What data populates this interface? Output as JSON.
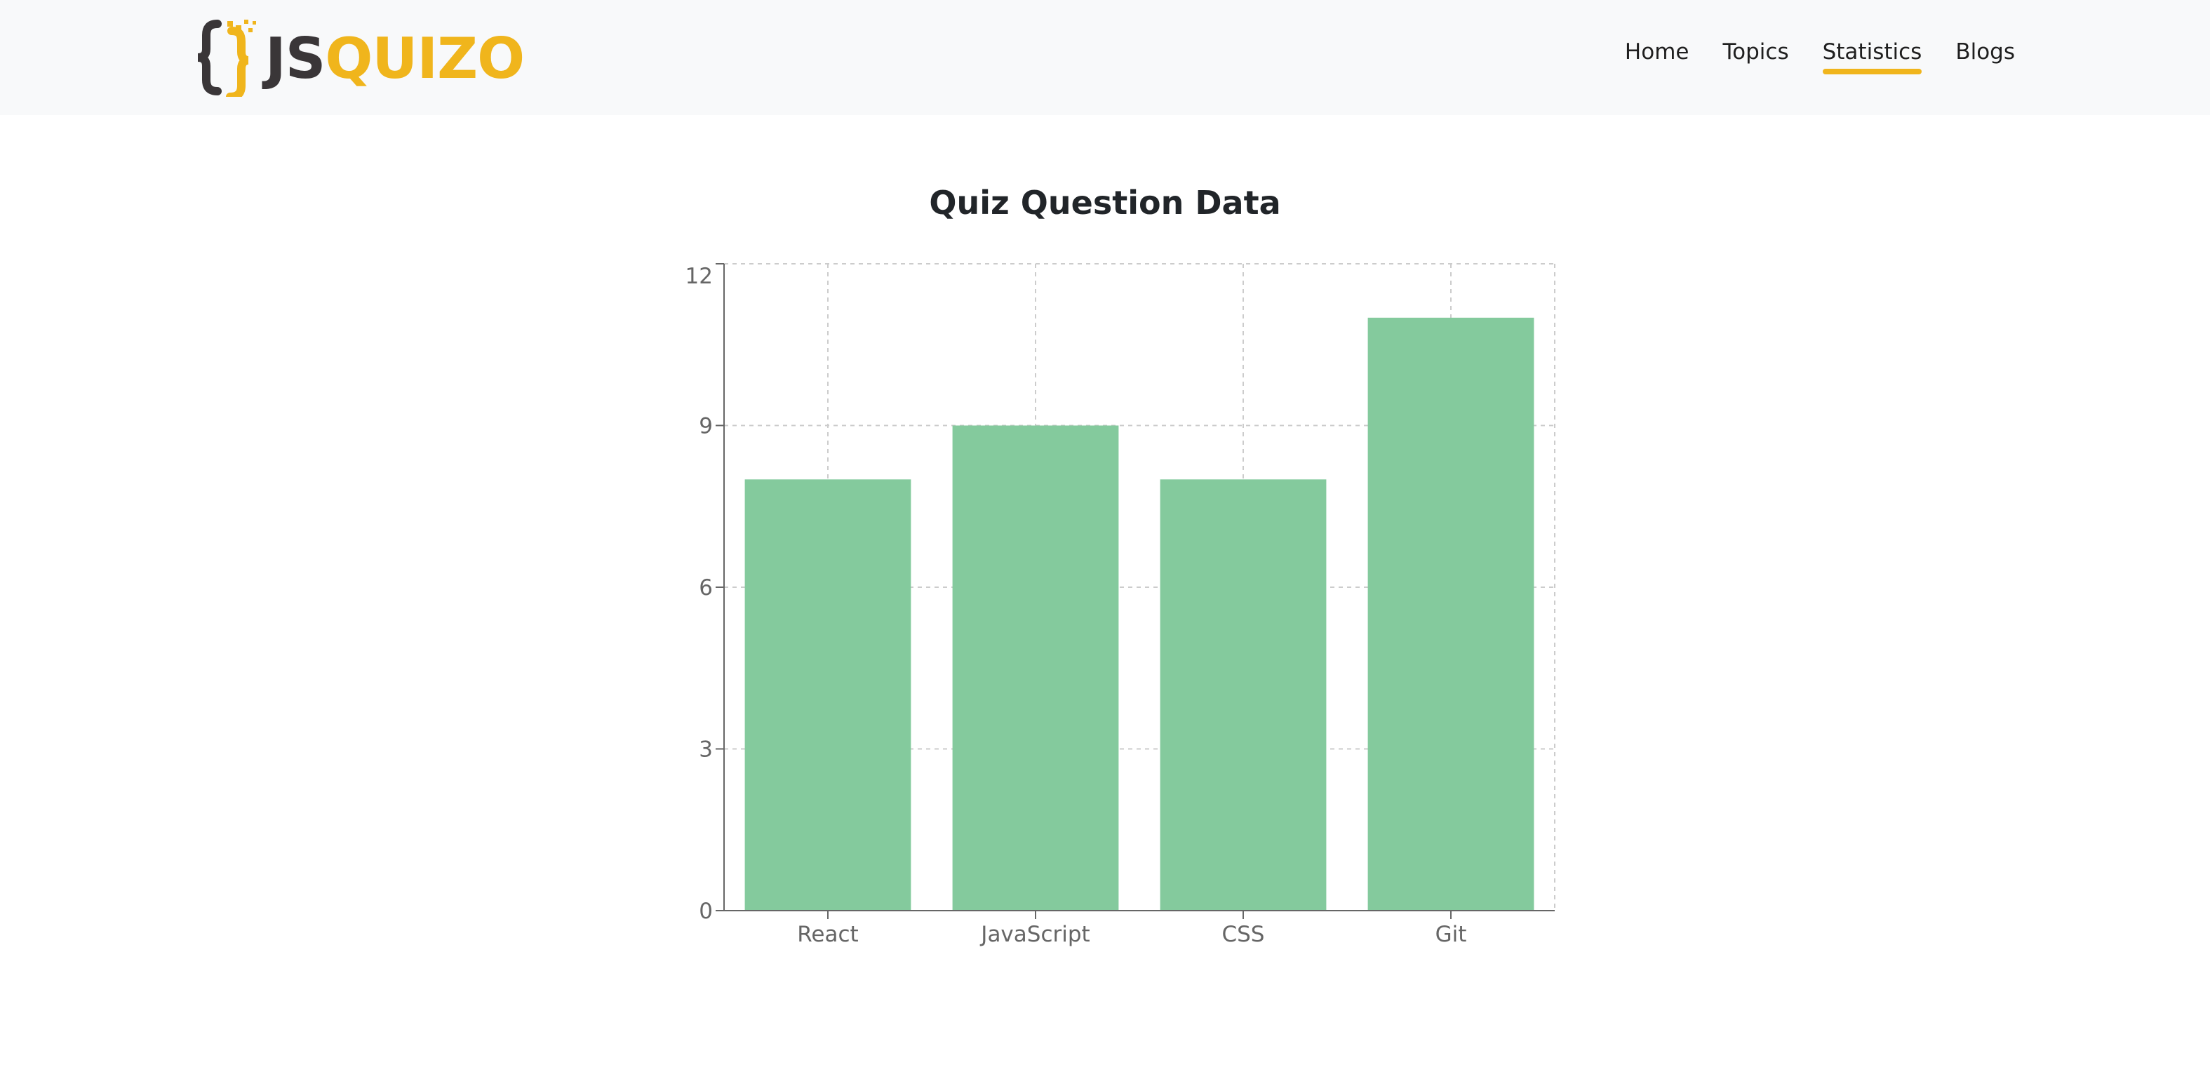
{
  "brand": {
    "part1": "JS",
    "part2": "QUIZO",
    "color_dark": "#3a3638",
    "color_accent": "#f0b51c"
  },
  "nav": {
    "items": [
      {
        "label": "Home",
        "active": false
      },
      {
        "label": "Topics",
        "active": false
      },
      {
        "label": "Statistics",
        "active": true
      },
      {
        "label": "Blogs",
        "active": false
      }
    ]
  },
  "chart_data": {
    "type": "bar",
    "title": "Quiz Question Data",
    "categories": [
      "React",
      "JavaScript",
      "CSS",
      "Git"
    ],
    "values": [
      8,
      9,
      8,
      11
    ],
    "ylim": [
      0,
      12
    ],
    "yticks": [
      0,
      3,
      6,
      9,
      12
    ],
    "grid": true,
    "bar_color": "#84ca9d",
    "xlabel": "",
    "ylabel": ""
  }
}
